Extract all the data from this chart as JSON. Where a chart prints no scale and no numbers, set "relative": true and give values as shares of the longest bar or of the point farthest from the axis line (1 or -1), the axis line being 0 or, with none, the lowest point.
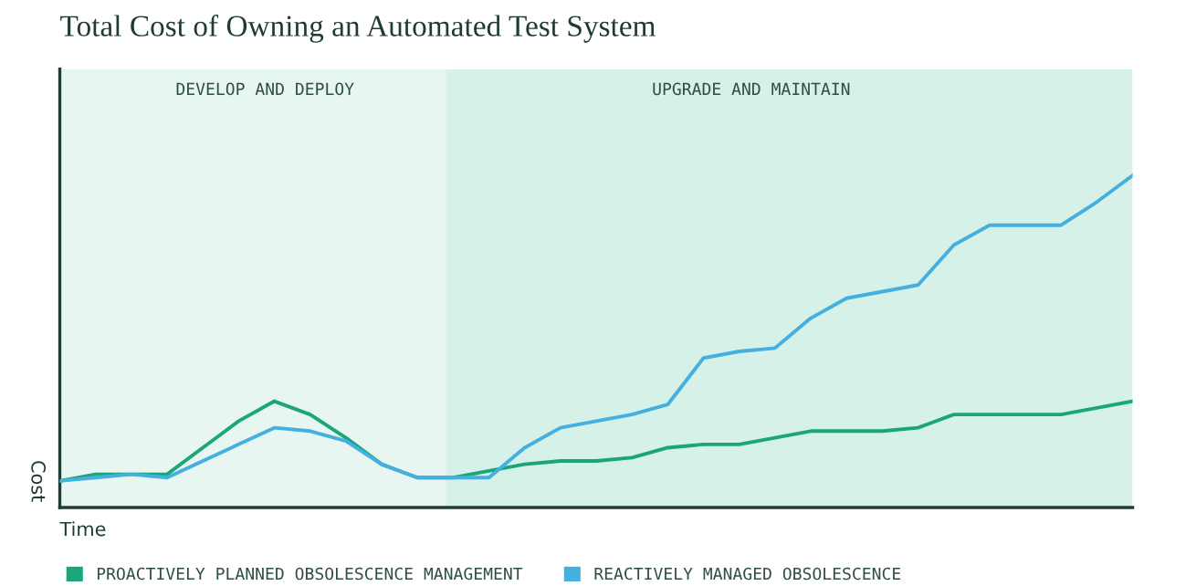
{
  "chart_data": {
    "type": "line",
    "title": "Total Cost of Owning an Automated Test System",
    "xlabel": "Time",
    "ylabel": "Cost",
    "relative": true,
    "categories": [
      null,
      null,
      null,
      null,
      null,
      null,
      null,
      null,
      null,
      null,
      null,
      null,
      null,
      null,
      null,
      null,
      null,
      null,
      null,
      null,
      null,
      null,
      null,
      null,
      null,
      null,
      null,
      null,
      null,
      null,
      null
    ],
    "series": [
      {
        "name": "PROACTIVELY PLANNED OBSOLESCENCE MANAGEMENT",
        "color": "#1aa67a",
        "values": [
          0.08,
          0.1,
          0.1,
          0.1,
          0.18,
          0.26,
          0.32,
          0.28,
          0.21,
          0.13,
          0.09,
          0.09,
          0.11,
          0.13,
          0.14,
          0.14,
          0.15,
          0.18,
          0.19,
          0.19,
          0.21,
          0.23,
          0.23,
          0.23,
          0.24,
          0.28,
          0.28,
          0.28,
          0.28,
          0.3,
          0.32
        ]
      },
      {
        "name": "REACTIVELY MANAGED OBSOLESCENCE",
        "color": "#45b0e0",
        "values": [
          0.08,
          0.09,
          0.1,
          0.09,
          0.14,
          0.19,
          0.24,
          0.23,
          0.2,
          0.13,
          0.09,
          0.09,
          0.09,
          0.18,
          0.24,
          0.26,
          0.28,
          0.31,
          0.45,
          0.47,
          0.48,
          0.57,
          0.63,
          0.65,
          0.67,
          0.79,
          0.85,
          0.85,
          0.85,
          0.92,
          1.0
        ]
      }
    ],
    "annotations": [
      "DEVELOP AND DEPLOY",
      "UPGRADE AND MAINTAIN"
    ],
    "legend": "bottom",
    "grid": false,
    "line_style": "solid",
    "marker": "none"
  }
}
